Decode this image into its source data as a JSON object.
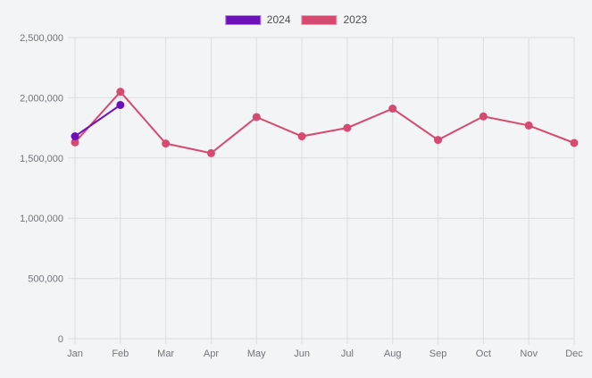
{
  "legend": {
    "items": [
      {
        "label": "2024",
        "color": "#6c11b8"
      },
      {
        "label": "2023",
        "color": "#d64970"
      }
    ]
  },
  "chart_data": {
    "type": "line",
    "title": "",
    "xlabel": "",
    "ylabel": "",
    "categories": [
      "Jan",
      "Feb",
      "Mar",
      "Apr",
      "May",
      "Jun",
      "Jul",
      "Aug",
      "Sep",
      "Oct",
      "Nov",
      "Dec"
    ],
    "series": [
      {
        "name": "2024",
        "color": "#6c11b8",
        "values": [
          1680000,
          1940000,
          null,
          null,
          null,
          null,
          null,
          null,
          null,
          null,
          null,
          null
        ]
      },
      {
        "name": "2023",
        "color": "#d64970",
        "values": [
          1630000,
          2050000,
          1620000,
          1540000,
          1840000,
          1680000,
          1750000,
          1910000,
          1650000,
          1845000,
          1770000,
          1625000
        ]
      }
    ],
    "ylim": [
      0,
      2500000
    ],
    "y_ticks": [
      0,
      500000,
      1000000,
      1500000,
      2000000,
      2500000
    ],
    "y_tick_labels": [
      "0",
      "500,000",
      "1,000,000",
      "1,500,000",
      "2,000,000",
      "2,500,000"
    ],
    "grid": true,
    "legend_position": "top"
  },
  "colors": {
    "background": "#f3f4f6",
    "grid": "#dcdce1",
    "tick_text": "#73737b",
    "legend_text": "#4d4d53"
  }
}
